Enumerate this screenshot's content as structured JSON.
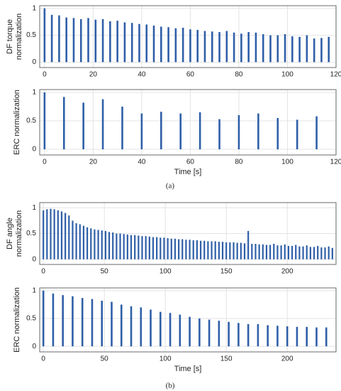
{
  "chart_data": [
    {
      "type": "spike",
      "ylabel": [
        "DF torque",
        "normalization"
      ],
      "color": "#2f5fa8",
      "grid": true,
      "xlim": [
        -2,
        120
      ],
      "xticks": [
        0,
        20,
        40,
        60,
        80,
        100,
        120
      ],
      "ylim": [
        -0.1,
        1.05
      ],
      "yticks": [
        0,
        0.5,
        1
      ],
      "x": [
        0,
        3,
        6,
        9,
        12,
        15,
        18,
        21,
        24,
        27,
        30,
        33,
        36,
        39,
        42,
        45,
        48,
        51,
        54,
        57,
        60,
        63,
        66,
        69,
        72,
        75,
        78,
        81,
        84,
        87,
        90,
        93,
        96,
        99,
        102,
        105,
        108,
        111,
        114,
        117
      ],
      "values": [
        1.0,
        0.88,
        0.87,
        0.83,
        0.82,
        0.8,
        0.82,
        0.79,
        0.8,
        0.76,
        0.77,
        0.74,
        0.73,
        0.71,
        0.7,
        0.68,
        0.66,
        0.65,
        0.63,
        0.64,
        0.61,
        0.6,
        0.58,
        0.57,
        0.56,
        0.58,
        0.55,
        0.53,
        0.56,
        0.55,
        0.52,
        0.5,
        0.5,
        0.52,
        0.48,
        0.47,
        0.5,
        0.44,
        0.45,
        0.47
      ]
    },
    {
      "type": "spike",
      "ylabel": [
        "ERC normalization"
      ],
      "xlabel": "Time [s]",
      "color": "#2f5fa8",
      "grid": true,
      "xlim": [
        -2,
        120
      ],
      "xticks": [
        0,
        20,
        40,
        60,
        80,
        100,
        120
      ],
      "ylim": [
        -0.1,
        1.05
      ],
      "yticks": [
        0,
        0.5,
        1
      ],
      "x": [
        0,
        8,
        16,
        24,
        32,
        40,
        48,
        56,
        64,
        72,
        80,
        88,
        96,
        104,
        112
      ],
      "values": [
        1.0,
        0.92,
        0.82,
        0.88,
        0.75,
        0.63,
        0.66,
        0.63,
        0.65,
        0.53,
        0.6,
        0.63,
        0.55,
        0.52,
        0.58
      ]
    },
    {
      "type": "spike",
      "ylabel": [
        "DF angle",
        "normalization"
      ],
      "color": "#2f5fa8",
      "grid": true,
      "xlim": [
        -3,
        240
      ],
      "xticks": [
        0,
        50,
        100,
        150,
        200
      ],
      "ylim": [
        -0.1,
        1.1
      ],
      "yticks": [
        0,
        0.5,
        1
      ],
      "x": [
        0,
        3,
        6,
        9,
        12,
        15,
        18,
        21,
        24,
        27,
        30,
        33,
        36,
        39,
        42,
        45,
        48,
        51,
        54,
        57,
        60,
        63,
        66,
        69,
        72,
        75,
        78,
        81,
        84,
        87,
        90,
        93,
        96,
        99,
        102,
        105,
        108,
        111,
        114,
        117,
        120,
        123,
        126,
        129,
        132,
        135,
        138,
        141,
        144,
        147,
        150,
        153,
        156,
        159,
        162,
        165,
        168,
        171,
        174,
        177,
        180,
        183,
        186,
        189,
        192,
        195,
        198,
        201,
        204,
        207,
        210,
        213,
        216,
        219,
        222,
        225,
        228,
        231,
        234,
        237
      ],
      "values": [
        0.95,
        0.97,
        0.98,
        0.97,
        0.95,
        0.93,
        0.9,
        0.85,
        0.75,
        0.7,
        0.68,
        0.65,
        0.62,
        0.6,
        0.58,
        0.57,
        0.56,
        0.55,
        0.53,
        0.52,
        0.5,
        0.5,
        0.49,
        0.48,
        0.47,
        0.47,
        0.46,
        0.45,
        0.45,
        0.44,
        0.43,
        0.43,
        0.42,
        0.42,
        0.41,
        0.4,
        0.4,
        0.39,
        0.39,
        0.38,
        0.38,
        0.37,
        0.37,
        0.36,
        0.36,
        0.35,
        0.35,
        0.35,
        0.34,
        0.34,
        0.33,
        0.33,
        0.33,
        0.32,
        0.32,
        0.31,
        0.55,
        0.3,
        0.3,
        0.29,
        0.29,
        0.28,
        0.28,
        0.3,
        0.27,
        0.27,
        0.29,
        0.26,
        0.26,
        0.28,
        0.25,
        0.25,
        0.27,
        0.24,
        0.24,
        0.26,
        0.23,
        0.23,
        0.25,
        0.22
      ]
    },
    {
      "type": "spike",
      "ylabel": [
        "ERC normalization"
      ],
      "xlabel": "Time [s]",
      "color": "#2f5fa8",
      "grid": true,
      "xlim": [
        -3,
        240
      ],
      "xticks": [
        0,
        50,
        100,
        150,
        200
      ],
      "ylim": [
        -0.1,
        1.05
      ],
      "yticks": [
        0,
        0.5,
        1
      ],
      "x": [
        0,
        8,
        16,
        24,
        32,
        40,
        48,
        56,
        64,
        72,
        80,
        88,
        96,
        104,
        112,
        120,
        128,
        136,
        144,
        152,
        160,
        168,
        176,
        184,
        192,
        200,
        208,
        216,
        224,
        232
      ],
      "values": [
        1.0,
        0.95,
        0.92,
        0.9,
        0.87,
        0.85,
        0.82,
        0.8,
        0.75,
        0.72,
        0.7,
        0.66,
        0.62,
        0.6,
        0.57,
        0.53,
        0.5,
        0.48,
        0.46,
        0.44,
        0.42,
        0.4,
        0.4,
        0.38,
        0.37,
        0.36,
        0.35,
        0.35,
        0.34,
        0.34
      ]
    }
  ],
  "captions": [
    "(a)",
    "(b)"
  ]
}
